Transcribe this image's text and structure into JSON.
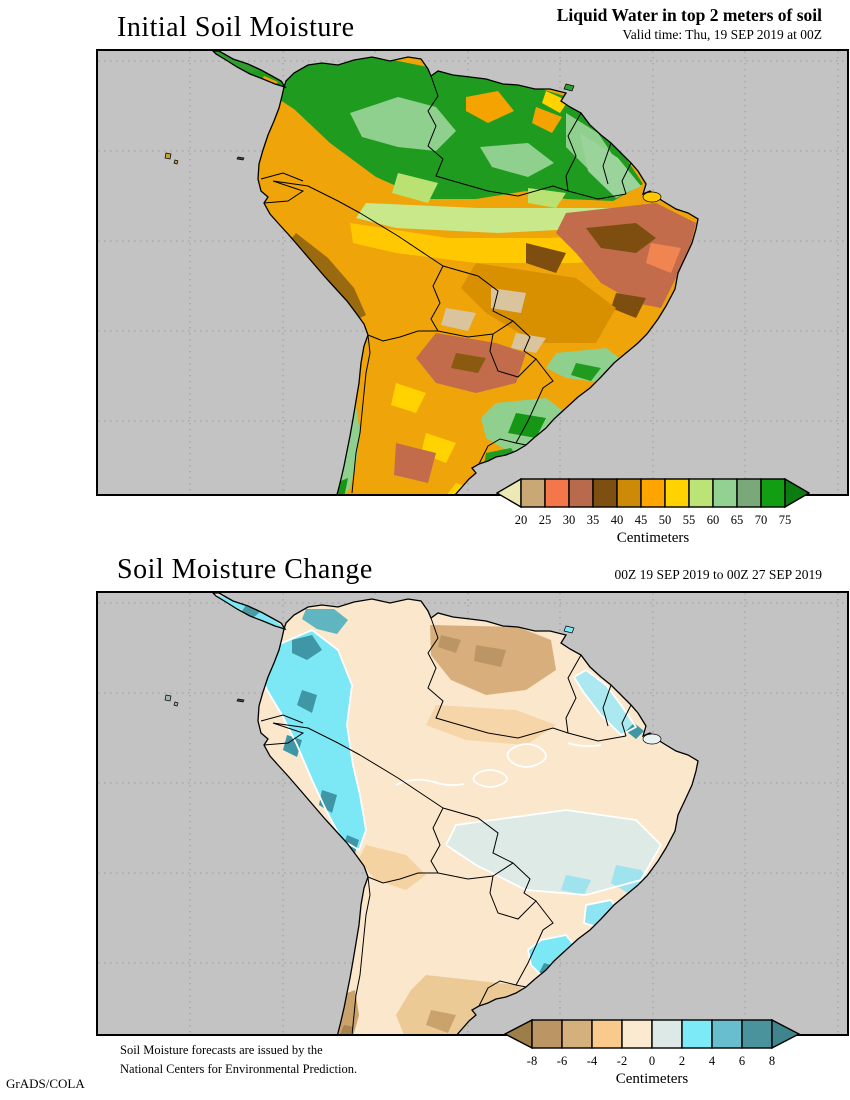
{
  "top_panel": {
    "title": "Initial Soil Moisture",
    "header_bold": "Liquid Water in top 2 meters of soil",
    "header_sub": "Valid time: Thu, 19 SEP 2019 at 00Z",
    "colorbar": {
      "unit": "Centimeters",
      "ticks": [
        "20",
        "25",
        "30",
        "35",
        "40",
        "45",
        "50",
        "55",
        "60",
        "65",
        "70",
        "75"
      ],
      "cell_colors": [
        "#C9A876",
        "#F4774B",
        "#BA6A4C",
        "#7D4F10",
        "#CC8A06",
        "#FFA400",
        "#FFD200",
        "#BCE375",
        "#92D192",
        "#79A879",
        "#129E12"
      ],
      "arrow_left_color": "#EDE9B4",
      "arrow_right_color": "#0B7C0F"
    }
  },
  "bottom_panel": {
    "title": "Soil Moisture Change",
    "header_sub": "00Z 19 SEP 2019 to 00Z 27 SEP 2019",
    "colorbar": {
      "unit": "Centimeters",
      "ticks": [
        "-8",
        "-6",
        "-4",
        "-2",
        "0",
        "2",
        "4",
        "6",
        "8"
      ],
      "cell_colors": [
        "#BC9565",
        "#D4B07C",
        "#F9CA8C",
        "#FBEAD0",
        "#DDE9E6",
        "#7DEAF8",
        "#68BECE",
        "#4A929C"
      ],
      "arrow_left_color": "#9C7F48",
      "arrow_right_color": "#3E858E"
    }
  },
  "footer": {
    "note_line1": "Soil Moisture forecasts are issued by the",
    "note_line2": "National Centers for Environmental Prediction.",
    "credit": "GrADS/COLA"
  },
  "map": {
    "ocean_color": "#C3C3C3",
    "grid_color": "#9A9A9A",
    "coast_color": "#000000"
  }
}
